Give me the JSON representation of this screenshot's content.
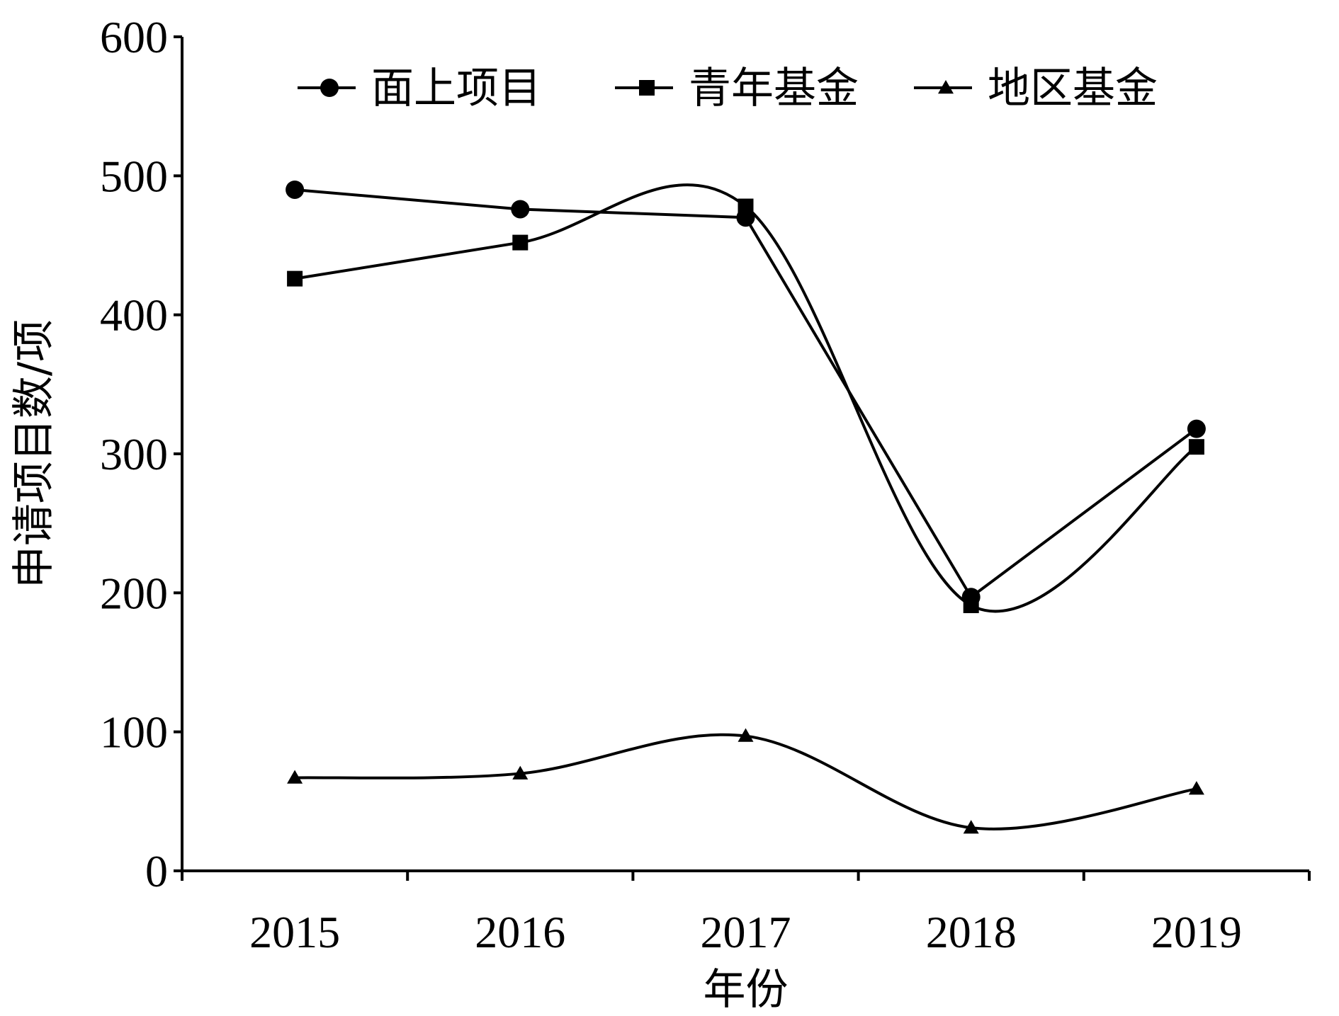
{
  "chart_data": {
    "type": "line",
    "categories": [
      "2015",
      "2016",
      "2017",
      "2018",
      "2019"
    ],
    "series": [
      {
        "name": "面上项目",
        "marker": "circle",
        "smooth": false,
        "values": [
          490,
          476,
          470,
          197,
          318
        ]
      },
      {
        "name": "青年基金",
        "marker": "square",
        "smooth": true,
        "values": [
          426,
          452,
          478,
          191,
          305
        ]
      },
      {
        "name": "地区基金",
        "marker": "triangle",
        "smooth": true,
        "values": [
          67,
          70,
          97,
          31,
          59
        ]
      }
    ],
    "xlabel": "年份",
    "ylabel": "申请项目数/项",
    "ylim": [
      0,
      600
    ],
    "yticks": [
      "0",
      "100",
      "200",
      "300",
      "400",
      "500",
      "600"
    ],
    "grid": false,
    "legend_position": "top",
    "line_color": "#000000"
  }
}
